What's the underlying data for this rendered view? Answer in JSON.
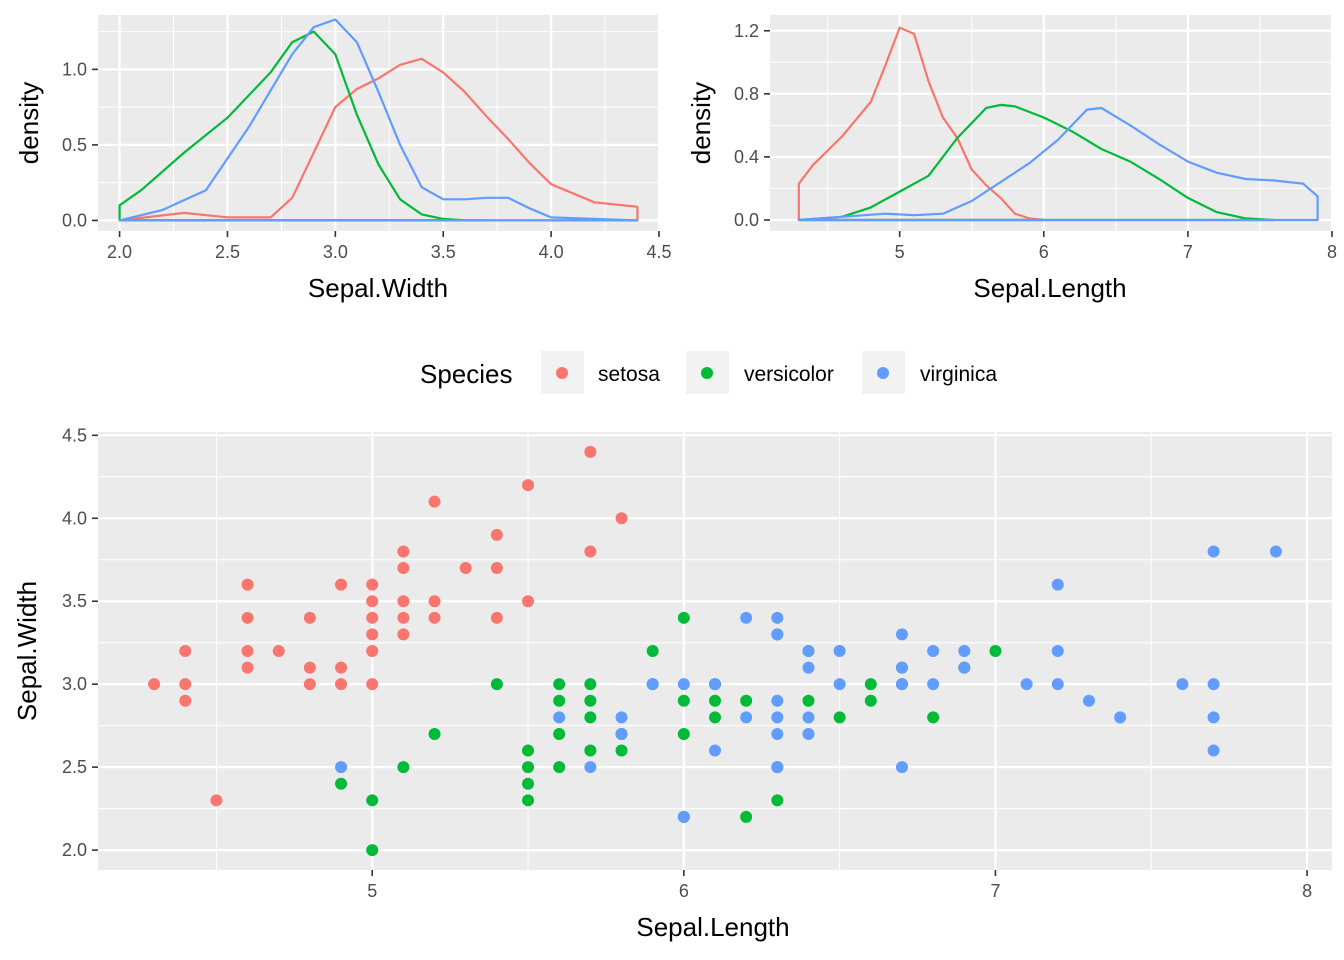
{
  "colors": {
    "setosa": "#F8766D",
    "versicolor": "#00BA38",
    "virginica": "#619CFF",
    "panel": "#EBEBEB",
    "grid": "#FFFFFF"
  },
  "legend": {
    "title": "Species",
    "entries": [
      "setosa",
      "versicolor",
      "virginica"
    ]
  },
  "chart_data": [
    {
      "type": "line",
      "subtype": "density",
      "xlabel": "Sepal.Width",
      "ylabel": "density",
      "xlim": [
        1.9,
        4.5
      ],
      "ylim": [
        -0.07,
        1.36
      ],
      "xticks": [
        2.0,
        2.5,
        3.0,
        3.5,
        4.0,
        4.5
      ],
      "xtick_labels": [
        "2.0",
        "2.5",
        "3.0",
        "3.5",
        "4.0",
        "4.5"
      ],
      "yticks": [
        0.0,
        0.5,
        1.0
      ],
      "ytick_labels": [
        "0.0",
        "0.5",
        "1.0"
      ],
      "series": [
        {
          "name": "setosa",
          "x": [
            2.0,
            2.3,
            2.5,
            2.7,
            2.8,
            2.9,
            3.0,
            3.1,
            3.2,
            3.3,
            3.4,
            3.5,
            3.6,
            3.7,
            3.8,
            3.9,
            4.0,
            4.2,
            4.4,
            4.4,
            2.0
          ],
          "y": [
            0.0,
            0.05,
            0.02,
            0.02,
            0.15,
            0.45,
            0.75,
            0.87,
            0.94,
            1.03,
            1.07,
            0.98,
            0.85,
            0.69,
            0.54,
            0.38,
            0.24,
            0.12,
            0.09,
            0.0,
            0.0
          ]
        },
        {
          "name": "versicolor",
          "x": [
            2.0,
            2.0,
            2.1,
            2.3,
            2.5,
            2.7,
            2.8,
            2.9,
            3.0,
            3.1,
            3.2,
            3.3,
            3.4,
            3.5,
            3.6,
            3.7,
            2.0
          ],
          "y": [
            0.0,
            0.1,
            0.2,
            0.45,
            0.68,
            0.98,
            1.18,
            1.25,
            1.1,
            0.7,
            0.37,
            0.14,
            0.04,
            0.01,
            0.0,
            0.0,
            0.0
          ]
        },
        {
          "name": "virginica",
          "x": [
            2.0,
            2.2,
            2.4,
            2.6,
            2.8,
            2.9,
            3.0,
            3.1,
            3.2,
            3.3,
            3.4,
            3.5,
            3.6,
            3.7,
            3.8,
            3.9,
            4.0,
            4.4,
            2.0
          ],
          "y": [
            0.0,
            0.07,
            0.2,
            0.62,
            1.1,
            1.28,
            1.33,
            1.18,
            0.85,
            0.5,
            0.22,
            0.14,
            0.14,
            0.15,
            0.15,
            0.08,
            0.02,
            0.0,
            0.0
          ]
        }
      ]
    },
    {
      "type": "line",
      "subtype": "density",
      "xlabel": "Sepal.Length",
      "ylabel": "density",
      "xlim": [
        4.1,
        8.0
      ],
      "ylim": [
        -0.07,
        1.3
      ],
      "xticks": [
        5,
        6,
        7,
        8
      ],
      "xtick_labels": [
        "5",
        "6",
        "7",
        "8"
      ],
      "yticks": [
        0.0,
        0.4,
        0.8,
        1.2
      ],
      "ytick_labels": [
        "0.0",
        "0.4",
        "0.8",
        "1.2"
      ],
      "series": [
        {
          "name": "setosa",
          "x": [
            4.3,
            4.3,
            4.4,
            4.6,
            4.8,
            4.9,
            5.0,
            5.1,
            5.2,
            5.3,
            5.4,
            5.5,
            5.6,
            5.7,
            5.8,
            5.9,
            6.0,
            4.3
          ],
          "y": [
            0.0,
            0.23,
            0.35,
            0.53,
            0.75,
            0.98,
            1.22,
            1.18,
            0.88,
            0.65,
            0.52,
            0.32,
            0.22,
            0.14,
            0.04,
            0.01,
            0.0,
            0.0
          ]
        },
        {
          "name": "versicolor",
          "x": [
            4.3,
            4.6,
            4.8,
            5.0,
            5.2,
            5.4,
            5.6,
            5.7,
            5.8,
            6.0,
            6.2,
            6.4,
            6.6,
            6.8,
            7.0,
            7.2,
            7.4,
            7.6,
            4.3
          ],
          "y": [
            0.0,
            0.02,
            0.08,
            0.18,
            0.28,
            0.52,
            0.71,
            0.73,
            0.72,
            0.65,
            0.56,
            0.45,
            0.37,
            0.26,
            0.14,
            0.05,
            0.01,
            0.0,
            0.0
          ]
        },
        {
          "name": "virginica",
          "x": [
            4.3,
            4.6,
            4.9,
            5.1,
            5.3,
            5.5,
            5.7,
            5.9,
            6.1,
            6.3,
            6.4,
            6.6,
            6.8,
            7.0,
            7.2,
            7.4,
            7.6,
            7.8,
            7.9,
            7.9,
            4.3
          ],
          "y": [
            0.0,
            0.02,
            0.04,
            0.03,
            0.04,
            0.12,
            0.24,
            0.36,
            0.51,
            0.7,
            0.71,
            0.6,
            0.48,
            0.37,
            0.3,
            0.26,
            0.25,
            0.23,
            0.15,
            0.0,
            0.0
          ]
        }
      ]
    },
    {
      "type": "scatter",
      "xlabel": "Sepal.Length",
      "ylabel": "Sepal.Width",
      "xlim": [
        4.12,
        8.08
      ],
      "ylim": [
        1.88,
        4.52
      ],
      "xticks": [
        5,
        6,
        7,
        8
      ],
      "xtick_labels": [
        "5",
        "6",
        "7",
        "8"
      ],
      "yticks": [
        2.0,
        2.5,
        3.0,
        3.5,
        4.0,
        4.5
      ],
      "ytick_labels": [
        "2.0",
        "2.5",
        "3.0",
        "3.5",
        "4.0",
        "4.5"
      ],
      "series": [
        {
          "name": "setosa",
          "points": [
            [
              4.3,
              3.0
            ],
            [
              4.4,
              2.9
            ],
            [
              4.4,
              3.0
            ],
            [
              4.4,
              3.2
            ],
            [
              4.5,
              2.3
            ],
            [
              4.6,
              3.1
            ],
            [
              4.6,
              3.2
            ],
            [
              4.6,
              3.4
            ],
            [
              4.6,
              3.6
            ],
            [
              4.7,
              3.2
            ],
            [
              4.8,
              3.0
            ],
            [
              4.8,
              3.1
            ],
            [
              4.8,
              3.4
            ],
            [
              4.9,
              3.0
            ],
            [
              4.9,
              3.1
            ],
            [
              4.9,
              3.6
            ],
            [
              5.0,
              3.0
            ],
            [
              5.0,
              3.2
            ],
            [
              5.0,
              3.3
            ],
            [
              5.0,
              3.4
            ],
            [
              5.0,
              3.5
            ],
            [
              5.0,
              3.6
            ],
            [
              5.1,
              3.3
            ],
            [
              5.1,
              3.4
            ],
            [
              5.1,
              3.5
            ],
            [
              5.1,
              3.7
            ],
            [
              5.1,
              3.8
            ],
            [
              5.2,
              3.4
            ],
            [
              5.2,
              3.5
            ],
            [
              5.2,
              4.1
            ],
            [
              5.3,
              3.7
            ],
            [
              5.4,
              3.4
            ],
            [
              5.4,
              3.7
            ],
            [
              5.4,
              3.9
            ],
            [
              5.5,
              3.5
            ],
            [
              5.5,
              4.2
            ],
            [
              5.7,
              3.8
            ],
            [
              5.7,
              4.4
            ],
            [
              5.8,
              4.0
            ]
          ]
        },
        {
          "name": "versicolor",
          "points": [
            [
              4.9,
              2.4
            ],
            [
              5.0,
              2.0
            ],
            [
              5.0,
              2.3
            ],
            [
              5.1,
              2.5
            ],
            [
              5.2,
              2.7
            ],
            [
              5.4,
              3.0
            ],
            [
              5.5,
              2.3
            ],
            [
              5.5,
              2.4
            ],
            [
              5.5,
              2.5
            ],
            [
              5.5,
              2.6
            ],
            [
              5.6,
              2.5
            ],
            [
              5.6,
              2.7
            ],
            [
              5.6,
              2.9
            ],
            [
              5.6,
              3.0
            ],
            [
              5.7,
              2.6
            ],
            [
              5.7,
              2.8
            ],
            [
              5.7,
              2.9
            ],
            [
              5.7,
              3.0
            ],
            [
              5.8,
              2.6
            ],
            [
              5.8,
              2.7
            ],
            [
              5.9,
              3.0
            ],
            [
              5.9,
              3.2
            ],
            [
              6.0,
              2.2
            ],
            [
              6.0,
              2.7
            ],
            [
              6.0,
              2.9
            ],
            [
              6.0,
              3.4
            ],
            [
              6.1,
              2.8
            ],
            [
              6.1,
              2.9
            ],
            [
              6.1,
              3.0
            ],
            [
              6.2,
              2.2
            ],
            [
              6.2,
              2.9
            ],
            [
              6.3,
              2.3
            ],
            [
              6.3,
              2.5
            ],
            [
              6.3,
              3.3
            ],
            [
              6.4,
              2.9
            ],
            [
              6.4,
              3.2
            ],
            [
              6.5,
              2.8
            ],
            [
              6.6,
              2.9
            ],
            [
              6.6,
              3.0
            ],
            [
              6.7,
              3.0
            ],
            [
              6.7,
              3.1
            ],
            [
              6.8,
              2.8
            ],
            [
              6.9,
              3.1
            ],
            [
              7.0,
              3.2
            ]
          ]
        },
        {
          "name": "virginica",
          "points": [
            [
              4.9,
              2.5
            ],
            [
              5.6,
              2.8
            ],
            [
              5.7,
              2.5
            ],
            [
              5.8,
              2.7
            ],
            [
              5.8,
              2.8
            ],
            [
              5.9,
              3.0
            ],
            [
              6.0,
              2.2
            ],
            [
              6.0,
              3.0
            ],
            [
              6.1,
              2.6
            ],
            [
              6.1,
              3.0
            ],
            [
              6.2,
              2.8
            ],
            [
              6.2,
              3.4
            ],
            [
              6.3,
              2.5
            ],
            [
              6.3,
              2.7
            ],
            [
              6.3,
              2.8
            ],
            [
              6.3,
              2.9
            ],
            [
              6.3,
              3.3
            ],
            [
              6.3,
              3.4
            ],
            [
              6.4,
              2.7
            ],
            [
              6.4,
              2.8
            ],
            [
              6.4,
              3.1
            ],
            [
              6.4,
              3.2
            ],
            [
              6.5,
              3.0
            ],
            [
              6.5,
              3.2
            ],
            [
              6.7,
              2.5
            ],
            [
              6.7,
              3.0
            ],
            [
              6.7,
              3.1
            ],
            [
              6.7,
              3.3
            ],
            [
              6.8,
              3.0
            ],
            [
              6.8,
              3.2
            ],
            [
              6.9,
              3.1
            ],
            [
              6.9,
              3.2
            ],
            [
              7.1,
              3.0
            ],
            [
              7.2,
              3.0
            ],
            [
              7.2,
              3.2
            ],
            [
              7.2,
              3.6
            ],
            [
              7.3,
              2.9
            ],
            [
              7.4,
              2.8
            ],
            [
              7.6,
              3.0
            ],
            [
              7.7,
              2.6
            ],
            [
              7.7,
              2.8
            ],
            [
              7.7,
              3.0
            ],
            [
              7.7,
              3.8
            ],
            [
              7.9,
              3.8
            ]
          ]
        }
      ]
    }
  ]
}
